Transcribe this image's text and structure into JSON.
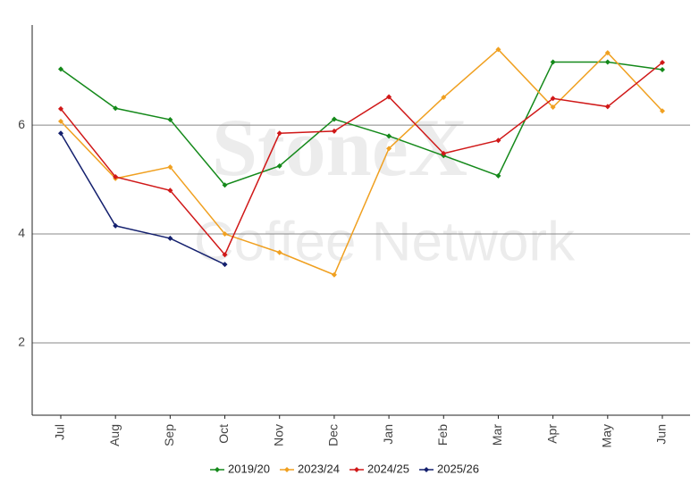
{
  "chart_data": {
    "type": "line",
    "watermark": [
      "StoneX",
      "Coffee Network"
    ],
    "categories": [
      "Jul",
      "Aug",
      "Sep",
      "Oct",
      "Nov",
      "Dec",
      "Jan",
      "Feb",
      "Mar",
      "Apr",
      "May",
      "Jun"
    ],
    "series": [
      {
        "name": "2019/20",
        "color": "#14891a",
        "values": [
          7.03,
          6.31,
          6.1,
          4.9,
          5.25,
          6.11,
          5.8,
          5.44,
          5.07,
          7.16,
          7.16,
          7.02
        ]
      },
      {
        "name": "2023/24",
        "color": "#f0a020",
        "values": [
          6.07,
          5.02,
          5.23,
          4.0,
          3.66,
          3.25,
          5.57,
          6.51,
          7.39,
          6.33,
          7.33,
          6.26
        ]
      },
      {
        "name": "2024/25",
        "color": "#d01818",
        "values": [
          6.3,
          5.05,
          4.8,
          3.62,
          5.85,
          5.89,
          6.52,
          5.48,
          5.72,
          6.49,
          6.34,
          7.15
        ]
      },
      {
        "name": "2025/26",
        "color": "#14206e",
        "values": [
          5.85,
          4.15,
          3.92,
          3.44,
          null,
          null,
          null,
          null,
          null,
          null,
          null,
          null
        ]
      }
    ],
    "ylim": [
      0.67,
      7.84
    ],
    "yticks": [
      2,
      4,
      6
    ],
    "grid": true,
    "legend": "bottom"
  }
}
